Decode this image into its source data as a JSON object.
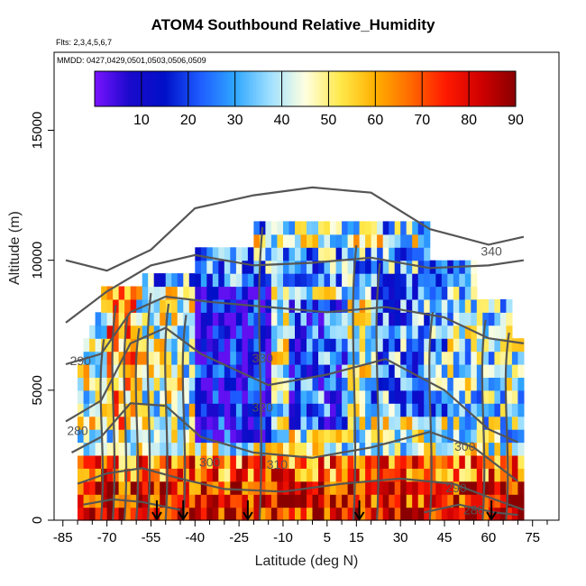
{
  "header": {
    "title": "ATOM4 Southbound Relative_Humidity",
    "flights": "Flts: 2,3,4,5,6,7",
    "dates": "MMDD: 0427,0429,0501,0503,0506,0509"
  },
  "chart_data": {
    "type": "heatmap",
    "title": "ATOM4 Southbound Relative_Humidity",
    "xlabel": "Latitude (deg N)",
    "ylabel": "Altitude (m)",
    "xlim": [
      -88,
      84
    ],
    "ylim": [
      0,
      18000
    ],
    "xticks": [
      -85,
      -70,
      -55,
      -40,
      -25,
      -10,
      5,
      15,
      30,
      45,
      60,
      75
    ],
    "yticks": [
      0,
      5000,
      10000,
      15000
    ],
    "colorbar": {
      "range": [
        0,
        90
      ],
      "ticks": [
        10,
        20,
        30,
        40,
        50,
        60,
        70,
        80,
        90
      ],
      "colors": [
        "#7a12ff",
        "#1a0acc",
        "#0010c8",
        "#1e5cff",
        "#2fa6ff",
        "#9fe0ff",
        "#ffffe0",
        "#ffe94a",
        "#ffb000",
        "#ff6a00",
        "#ff1a00",
        "#d00000",
        "#8a0000"
      ]
    },
    "theta_contour_labels": [
      {
        "label": "340",
        "lat": 61,
        "alt": 10300
      },
      {
        "label": "330",
        "lat": -17,
        "alt": 6200
      },
      {
        "label": "320",
        "lat": -17,
        "alt": 4300
      },
      {
        "label": "310",
        "lat": -12,
        "alt": 2100
      },
      {
        "label": "300",
        "lat": -35,
        "alt": 2200
      },
      {
        "label": "300",
        "lat": 52,
        "alt": 2800
      },
      {
        "label": "290",
        "lat": -79,
        "alt": 6100
      },
      {
        "label": "290",
        "lat": 49,
        "alt": 1200
      },
      {
        "label": "280",
        "lat": -80,
        "alt": 3400
      },
      {
        "label": "280",
        "lat": 55,
        "alt": 350
      }
    ],
    "arrow_latitudes": [
      -53,
      -44,
      -22,
      16,
      61
    ]
  }
}
